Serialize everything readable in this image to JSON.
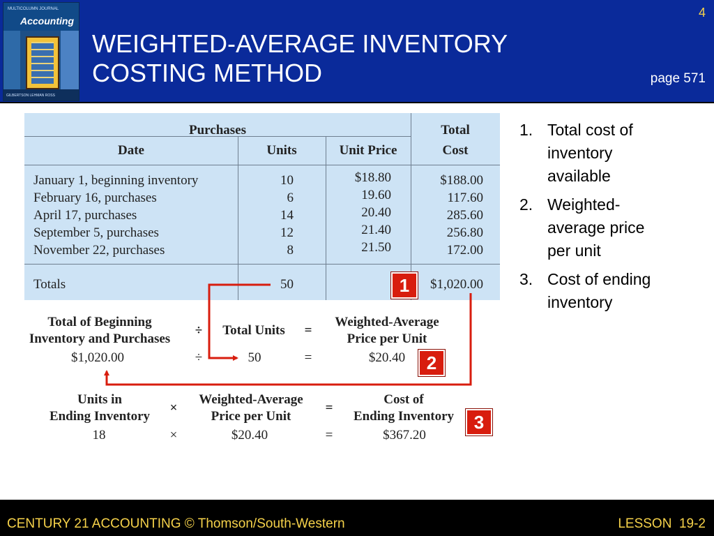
{
  "slide_number": "4",
  "title_line1": "WEIGHTED-AVERAGE INVENTORY",
  "title_line2": "COSTING METHOD",
  "page_ref": "page 571",
  "cover": {
    "series": "MULTICOLUMN JOURNAL",
    "brand": "Accounting",
    "authors": "GILBERTSON LEHMAN ROSS"
  },
  "table": {
    "purchases_header": "Purchases",
    "total_header_line1": "Total",
    "total_header_line2": "Cost",
    "columns": [
      "Date",
      "Units",
      "Unit Price"
    ],
    "rows": [
      {
        "date": "January 1, beginning inventory",
        "units": "10",
        "price": "$18.80",
        "total": "$188.00"
      },
      {
        "date": "February 16, purchases",
        "units": "6",
        "price": "19.60",
        "total": "117.60"
      },
      {
        "date": "April 17, purchases",
        "units": "14",
        "price": "20.40",
        "total": "285.60"
      },
      {
        "date": "September 5, purchases",
        "units": "12",
        "price": "21.40",
        "total": "256.80"
      },
      {
        "date": "November 22, purchases",
        "units": "8",
        "price": "21.50",
        "total": "172.00"
      }
    ],
    "totals_label": "Totals",
    "totals_units": "50",
    "totals_cost": "$1,020.00"
  },
  "formula1": {
    "term1_line1": "Total of Beginning",
    "term1_line2": "Inventory and Purchases",
    "op": "÷",
    "term2": "Total Units",
    "eq": "=",
    "result_line1": "Weighted-Average",
    "result_line2": "Price per Unit",
    "val1": "$1,020.00",
    "val_op": "÷",
    "val2": "50",
    "val_eq": "=",
    "val_result": "$20.40"
  },
  "formula2": {
    "term1_line1": "Units in",
    "term1_line2": "Ending Inventory",
    "op": "×",
    "term2_line1": "Weighted-Average",
    "term2_line2": "Price per Unit",
    "eq": "=",
    "result_line1": "Cost of",
    "result_line2": "Ending Inventory",
    "val1": "18",
    "val_op": "×",
    "val2": "$20.40",
    "val_eq": "=",
    "val_result": "$367.20"
  },
  "callouts": [
    "1",
    "2",
    "3"
  ],
  "list": [
    {
      "num": "1.",
      "text_line1": "Total cost of",
      "text_line2": "inventory",
      "text_line3": "available"
    },
    {
      "num": "2.",
      "text_line1": "Weighted-",
      "text_line2": "average price",
      "text_line3": "per unit"
    },
    {
      "num": "3.",
      "text_line1": "Cost of ending",
      "text_line2": "inventory",
      "text_line3": ""
    }
  ],
  "footer_left": "CENTURY 21 ACCOUNTING © Thomson/South-Western",
  "footer_right": "LESSON  19-2",
  "colors": {
    "header_bg": "#0a2a9a",
    "accent_yellow": "#f6d24a",
    "callout_red": "#d81d0e",
    "arrow_red": "#d81d0e",
    "table_bg": "#cde3f5"
  }
}
